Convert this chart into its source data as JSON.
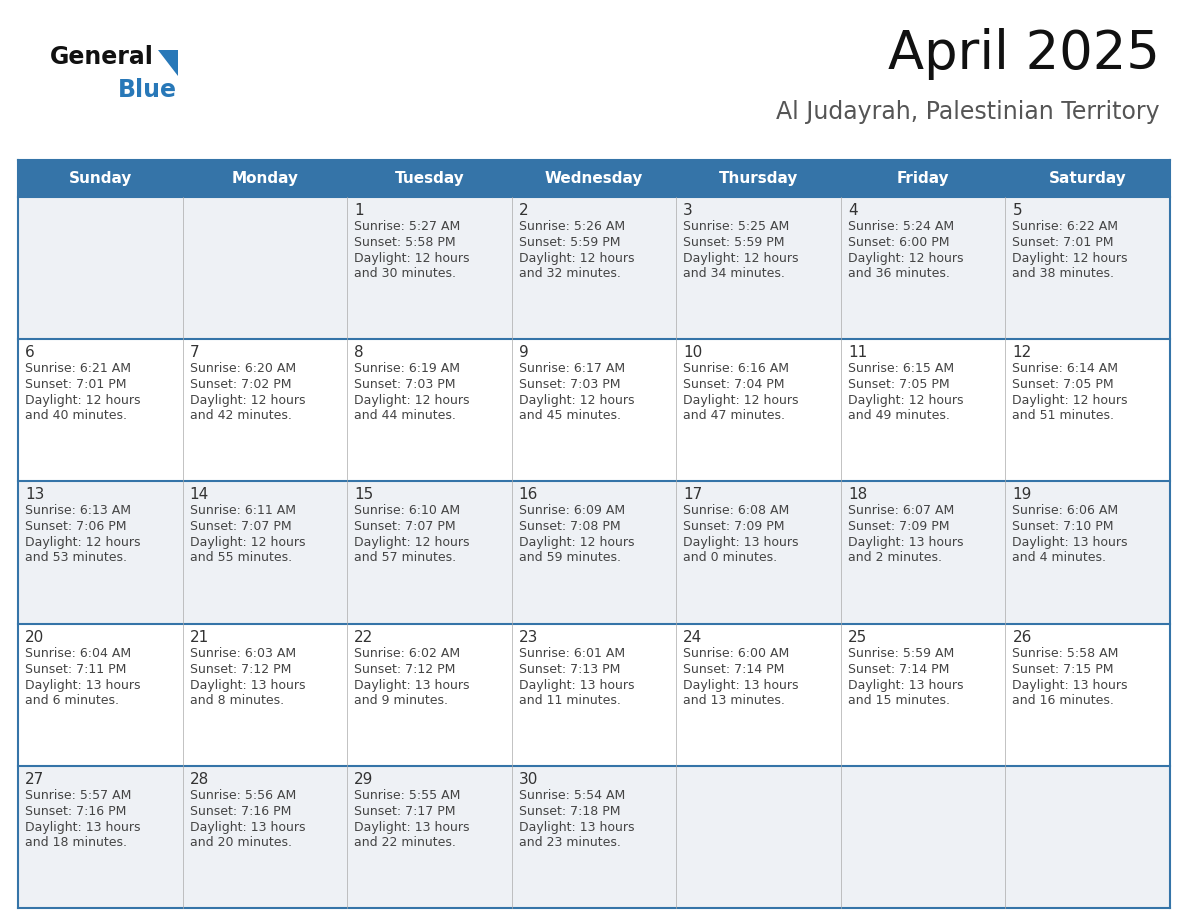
{
  "title": "April 2025",
  "subtitle": "Al Judayrah, Palestinian Territory",
  "header_bg_color": "#3574a8",
  "header_text_color": "#ffffff",
  "row_bg_even": "#eef1f5",
  "row_bg_odd": "#ffffff",
  "text_color": "#444444",
  "day_number_color": "#333333",
  "grid_line_color": "#3574a8",
  "days_of_week": [
    "Sunday",
    "Monday",
    "Tuesday",
    "Wednesday",
    "Thursday",
    "Friday",
    "Saturday"
  ],
  "weeks": [
    [
      {
        "day": "",
        "sunrise": "",
        "sunset": "",
        "daylight": ""
      },
      {
        "day": "",
        "sunrise": "",
        "sunset": "",
        "daylight": ""
      },
      {
        "day": "1",
        "sunrise": "Sunrise: 5:27 AM",
        "sunset": "Sunset: 5:58 PM",
        "daylight": "Daylight: 12 hours\nand 30 minutes."
      },
      {
        "day": "2",
        "sunrise": "Sunrise: 5:26 AM",
        "sunset": "Sunset: 5:59 PM",
        "daylight": "Daylight: 12 hours\nand 32 minutes."
      },
      {
        "day": "3",
        "sunrise": "Sunrise: 5:25 AM",
        "sunset": "Sunset: 5:59 PM",
        "daylight": "Daylight: 12 hours\nand 34 minutes."
      },
      {
        "day": "4",
        "sunrise": "Sunrise: 5:24 AM",
        "sunset": "Sunset: 6:00 PM",
        "daylight": "Daylight: 12 hours\nand 36 minutes."
      },
      {
        "day": "5",
        "sunrise": "Sunrise: 6:22 AM",
        "sunset": "Sunset: 7:01 PM",
        "daylight": "Daylight: 12 hours\nand 38 minutes."
      }
    ],
    [
      {
        "day": "6",
        "sunrise": "Sunrise: 6:21 AM",
        "sunset": "Sunset: 7:01 PM",
        "daylight": "Daylight: 12 hours\nand 40 minutes."
      },
      {
        "day": "7",
        "sunrise": "Sunrise: 6:20 AM",
        "sunset": "Sunset: 7:02 PM",
        "daylight": "Daylight: 12 hours\nand 42 minutes."
      },
      {
        "day": "8",
        "sunrise": "Sunrise: 6:19 AM",
        "sunset": "Sunset: 7:03 PM",
        "daylight": "Daylight: 12 hours\nand 44 minutes."
      },
      {
        "day": "9",
        "sunrise": "Sunrise: 6:17 AM",
        "sunset": "Sunset: 7:03 PM",
        "daylight": "Daylight: 12 hours\nand 45 minutes."
      },
      {
        "day": "10",
        "sunrise": "Sunrise: 6:16 AM",
        "sunset": "Sunset: 7:04 PM",
        "daylight": "Daylight: 12 hours\nand 47 minutes."
      },
      {
        "day": "11",
        "sunrise": "Sunrise: 6:15 AM",
        "sunset": "Sunset: 7:05 PM",
        "daylight": "Daylight: 12 hours\nand 49 minutes."
      },
      {
        "day": "12",
        "sunrise": "Sunrise: 6:14 AM",
        "sunset": "Sunset: 7:05 PM",
        "daylight": "Daylight: 12 hours\nand 51 minutes."
      }
    ],
    [
      {
        "day": "13",
        "sunrise": "Sunrise: 6:13 AM",
        "sunset": "Sunset: 7:06 PM",
        "daylight": "Daylight: 12 hours\nand 53 minutes."
      },
      {
        "day": "14",
        "sunrise": "Sunrise: 6:11 AM",
        "sunset": "Sunset: 7:07 PM",
        "daylight": "Daylight: 12 hours\nand 55 minutes."
      },
      {
        "day": "15",
        "sunrise": "Sunrise: 6:10 AM",
        "sunset": "Sunset: 7:07 PM",
        "daylight": "Daylight: 12 hours\nand 57 minutes."
      },
      {
        "day": "16",
        "sunrise": "Sunrise: 6:09 AM",
        "sunset": "Sunset: 7:08 PM",
        "daylight": "Daylight: 12 hours\nand 59 minutes."
      },
      {
        "day": "17",
        "sunrise": "Sunrise: 6:08 AM",
        "sunset": "Sunset: 7:09 PM",
        "daylight": "Daylight: 13 hours\nand 0 minutes."
      },
      {
        "day": "18",
        "sunrise": "Sunrise: 6:07 AM",
        "sunset": "Sunset: 7:09 PM",
        "daylight": "Daylight: 13 hours\nand 2 minutes."
      },
      {
        "day": "19",
        "sunrise": "Sunrise: 6:06 AM",
        "sunset": "Sunset: 7:10 PM",
        "daylight": "Daylight: 13 hours\nand 4 minutes."
      }
    ],
    [
      {
        "day": "20",
        "sunrise": "Sunrise: 6:04 AM",
        "sunset": "Sunset: 7:11 PM",
        "daylight": "Daylight: 13 hours\nand 6 minutes."
      },
      {
        "day": "21",
        "sunrise": "Sunrise: 6:03 AM",
        "sunset": "Sunset: 7:12 PM",
        "daylight": "Daylight: 13 hours\nand 8 minutes."
      },
      {
        "day": "22",
        "sunrise": "Sunrise: 6:02 AM",
        "sunset": "Sunset: 7:12 PM",
        "daylight": "Daylight: 13 hours\nand 9 minutes."
      },
      {
        "day": "23",
        "sunrise": "Sunrise: 6:01 AM",
        "sunset": "Sunset: 7:13 PM",
        "daylight": "Daylight: 13 hours\nand 11 minutes."
      },
      {
        "day": "24",
        "sunrise": "Sunrise: 6:00 AM",
        "sunset": "Sunset: 7:14 PM",
        "daylight": "Daylight: 13 hours\nand 13 minutes."
      },
      {
        "day": "25",
        "sunrise": "Sunrise: 5:59 AM",
        "sunset": "Sunset: 7:14 PM",
        "daylight": "Daylight: 13 hours\nand 15 minutes."
      },
      {
        "day": "26",
        "sunrise": "Sunrise: 5:58 AM",
        "sunset": "Sunset: 7:15 PM",
        "daylight": "Daylight: 13 hours\nand 16 minutes."
      }
    ],
    [
      {
        "day": "27",
        "sunrise": "Sunrise: 5:57 AM",
        "sunset": "Sunset: 7:16 PM",
        "daylight": "Daylight: 13 hours\nand 18 minutes."
      },
      {
        "day": "28",
        "sunrise": "Sunrise: 5:56 AM",
        "sunset": "Sunset: 7:16 PM",
        "daylight": "Daylight: 13 hours\nand 20 minutes."
      },
      {
        "day": "29",
        "sunrise": "Sunrise: 5:55 AM",
        "sunset": "Sunset: 7:17 PM",
        "daylight": "Daylight: 13 hours\nand 22 minutes."
      },
      {
        "day": "30",
        "sunrise": "Sunrise: 5:54 AM",
        "sunset": "Sunset: 7:18 PM",
        "daylight": "Daylight: 13 hours\nand 23 minutes."
      },
      {
        "day": "",
        "sunrise": "",
        "sunset": "",
        "daylight": ""
      },
      {
        "day": "",
        "sunrise": "",
        "sunset": "",
        "daylight": ""
      },
      {
        "day": "",
        "sunrise": "",
        "sunset": "",
        "daylight": ""
      }
    ]
  ],
  "logo_color_general": "#111111",
  "logo_color_blue": "#2878b8",
  "logo_triangle_color": "#2878b8",
  "title_fontsize": 38,
  "subtitle_fontsize": 17,
  "header_fontsize": 11,
  "day_num_fontsize": 11,
  "cell_text_fontsize": 9
}
